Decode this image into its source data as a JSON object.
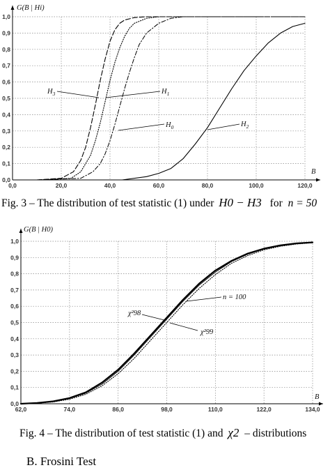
{
  "figures": [
    {
      "caption": {
        "prefix": "Fig. 3 – The distribution of test statistic (1) under",
        "math": "H0 − H3",
        "middle": "for",
        "n_expr": "n = 50"
      },
      "y_axis_label": "G(B | Hi)",
      "x_axis_label": "B"
    },
    {
      "caption": {
        "prefix": "Fig. 4 – The distribution of test statistic (1) and",
        "math": "χ2",
        "suffix": "– distributions"
      },
      "y_axis_label": "G(B | H0)",
      "x_axis_label": "B"
    }
  ],
  "section_heading": "B.   Frosini Test",
  "chart_data": [
    {
      "type": "line",
      "xlabel": "B",
      "ylabel": "G(B | Hi)",
      "xlim": [
        0,
        120
      ],
      "ylim": [
        0,
        1
      ],
      "x_ticks": [
        "0,0",
        "20,0",
        "40,0",
        "60,0",
        "80,0",
        "100,0",
        "120,0"
      ],
      "y_ticks": [
        "0,0",
        "0,1",
        "0,2",
        "0,3",
        "0,4",
        "0,5",
        "0,6",
        "0,7",
        "0,8",
        "0,9",
        "1,0"
      ],
      "grid": true,
      "series": [
        {
          "name": "H3",
          "style": "dashed",
          "x": [
            10,
            20,
            25,
            28,
            30,
            32,
            34,
            36,
            38,
            40,
            42,
            44,
            46,
            50,
            55,
            60,
            120
          ],
          "y": [
            0.0,
            0.01,
            0.05,
            0.12,
            0.2,
            0.32,
            0.46,
            0.61,
            0.74,
            0.85,
            0.92,
            0.96,
            0.98,
            0.995,
            1.0,
            1.0,
            1.0
          ]
        },
        {
          "name": "H1",
          "style": "dotted",
          "x": [
            10,
            24,
            28,
            32,
            34,
            36,
            38,
            40,
            42,
            44,
            46,
            48,
            50,
            55,
            60,
            120
          ],
          "y": [
            0.0,
            0.01,
            0.05,
            0.15,
            0.24,
            0.35,
            0.48,
            0.61,
            0.72,
            0.81,
            0.88,
            0.93,
            0.96,
            0.99,
            1.0,
            1.0
          ]
        },
        {
          "name": "H0",
          "style": "dash-dot",
          "x": [
            10,
            28,
            33,
            36,
            38,
            40,
            42,
            44,
            46,
            48,
            50,
            52,
            55,
            60,
            65,
            70,
            120
          ],
          "y": [
            0.0,
            0.01,
            0.05,
            0.1,
            0.16,
            0.24,
            0.34,
            0.45,
            0.56,
            0.66,
            0.75,
            0.83,
            0.9,
            0.96,
            0.99,
            1.0,
            1.0
          ]
        },
        {
          "name": "H2",
          "style": "solid",
          "x": [
            10,
            45,
            55,
            60,
            65,
            70,
            75,
            80,
            85,
            90,
            95,
            100,
            105,
            110,
            115,
            120
          ],
          "y": [
            0.0,
            0.0,
            0.02,
            0.04,
            0.07,
            0.13,
            0.22,
            0.32,
            0.44,
            0.56,
            0.67,
            0.76,
            0.84,
            0.9,
            0.94,
            0.96
          ]
        }
      ]
    },
    {
      "type": "line",
      "xlabel": "B",
      "ylabel": "G(B | H0)",
      "xlim": [
        62,
        134
      ],
      "ylim": [
        0,
        1
      ],
      "x_ticks": [
        "62,0",
        "74,0",
        "86,0",
        "98,0",
        "110,0",
        "122,0",
        "134,0"
      ],
      "y_ticks": [
        "0,0",
        "0,1",
        "0,2",
        "0,3",
        "0,4",
        "0,5",
        "0,6",
        "0,7",
        "0,8",
        "0,9",
        "1,0"
      ],
      "grid": true,
      "series": [
        {
          "name": "n = 100",
          "style": "solid-thick",
          "x": [
            62,
            66,
            70,
            74,
            78,
            82,
            86,
            90,
            94,
            98,
            102,
            106,
            110,
            114,
            118,
            122,
            126,
            130,
            134
          ],
          "y": [
            0.0,
            0.005,
            0.015,
            0.035,
            0.07,
            0.13,
            0.21,
            0.31,
            0.42,
            0.53,
            0.64,
            0.74,
            0.82,
            0.88,
            0.925,
            0.955,
            0.975,
            0.987,
            0.993
          ]
        },
        {
          "name": "χ²98",
          "style": "solid-thin",
          "x": [
            62,
            66,
            70,
            74,
            78,
            82,
            86,
            90,
            94,
            98,
            102,
            106,
            110,
            114,
            118,
            122,
            126,
            130,
            134
          ],
          "y": [
            0.0,
            0.004,
            0.013,
            0.032,
            0.065,
            0.12,
            0.2,
            0.3,
            0.41,
            0.52,
            0.63,
            0.73,
            0.81,
            0.875,
            0.92,
            0.952,
            0.972,
            0.985,
            0.992
          ]
        },
        {
          "name": "χ²99",
          "style": "dotted",
          "x": [
            62,
            66,
            70,
            74,
            78,
            82,
            86,
            90,
            94,
            98,
            102,
            106,
            110,
            114,
            118,
            122,
            126,
            130,
            134
          ],
          "y": [
            0.0,
            0.003,
            0.011,
            0.028,
            0.058,
            0.11,
            0.185,
            0.28,
            0.39,
            0.5,
            0.61,
            0.71,
            0.795,
            0.865,
            0.912,
            0.947,
            0.969,
            0.983,
            0.991
          ]
        }
      ]
    }
  ]
}
